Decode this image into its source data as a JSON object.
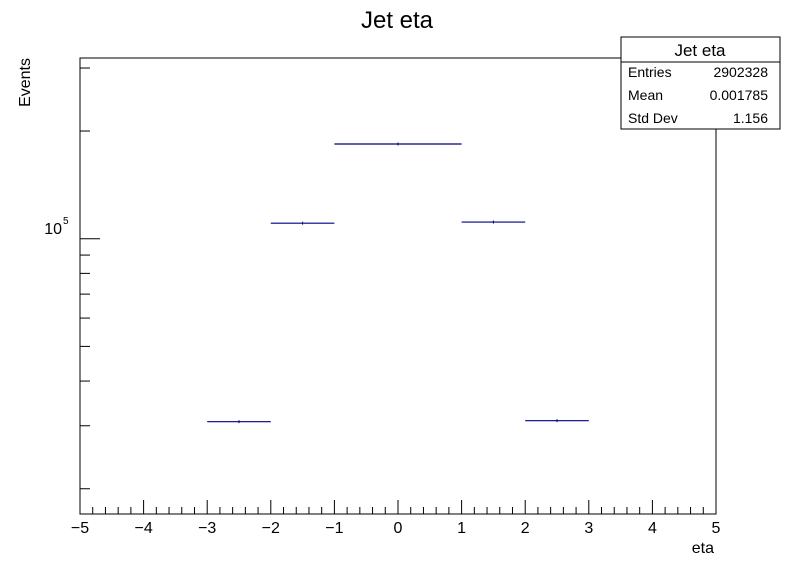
{
  "chart_data": {
    "type": "histogram",
    "title": "Jet eta",
    "xlabel": "eta",
    "ylabel": "Events",
    "xlim": [
      -5,
      5
    ],
    "ylim": [
      17000,
      320000
    ],
    "yscale": "log",
    "x_ticks": [
      "−5",
      "−4",
      "−3",
      "−2",
      "−1",
      "0",
      "1",
      "2",
      "3",
      "4",
      "5"
    ],
    "y_tick_label": {
      "base": "10",
      "exponent": "5"
    },
    "bins": [
      {
        "low": -3,
        "high": -2,
        "value": 30800
      },
      {
        "low": -2,
        "high": -1,
        "value": 110500
      },
      {
        "low": -1,
        "high": 1,
        "value": 184000
      },
      {
        "low": 1,
        "high": 2,
        "value": 111300
      },
      {
        "low": 2,
        "high": 3,
        "value": 31000
      }
    ],
    "line_color": "#000080",
    "stats_box": {
      "title": "Jet eta",
      "rows": [
        {
          "label": "Entries",
          "value": "2902328"
        },
        {
          "label": "Mean",
          "value": "0.001785"
        },
        {
          "label": "Std Dev",
          "value": "1.156"
        }
      ]
    }
  }
}
